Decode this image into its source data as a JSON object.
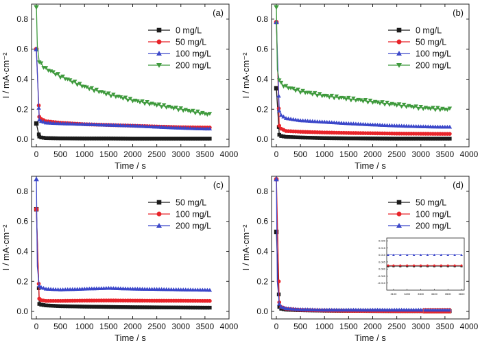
{
  "figure": {
    "title": ""
  },
  "colors": {
    "black": "#1a1a1a",
    "red": "#e8242a",
    "blue": "#3b47c9",
    "green": "#3f9a3d",
    "inset_box": "#e05050"
  },
  "chart_data": [
    {
      "panel_label": "(a)",
      "type": "line",
      "xlabel": "Time / s",
      "ylabel": "I / mA·cm⁻²",
      "xlim": [
        -100,
        4000
      ],
      "ylim": [
        -0.05,
        0.9
      ],
      "xticks": [
        0,
        500,
        1000,
        1500,
        2000,
        2500,
        3000,
        3500,
        4000
      ],
      "yticks": [
        0.0,
        0.2,
        0.4,
        0.6,
        0.8
      ],
      "legend": "top-right",
      "series": [
        {
          "name": "0 mg/L",
          "color": "#1a1a1a",
          "marker": "square",
          "x": [
            0,
            60,
            100,
            200,
            500,
            1000,
            1500,
            2000,
            2500,
            3000,
            3500,
            3600
          ],
          "y": [
            0.105,
            0.018,
            0.012,
            0.008,
            0.006,
            0.005,
            0.005,
            0.004,
            0.004,
            0.004,
            0.004,
            0.004
          ]
        },
        {
          "name": "50 mg/L",
          "color": "#e8242a",
          "marker": "circle",
          "x": [
            0,
            60,
            100,
            200,
            500,
            1000,
            1500,
            2000,
            2500,
            3000,
            3500,
            3600
          ],
          "y": [
            0.6,
            0.15,
            0.135,
            0.12,
            0.11,
            0.1,
            0.095,
            0.09,
            0.085,
            0.08,
            0.078,
            0.078
          ]
        },
        {
          "name": "100 mg/L",
          "color": "#3b47c9",
          "marker": "triangle",
          "x": [
            0,
            60,
            100,
            200,
            500,
            1000,
            1500,
            2000,
            2500,
            3000,
            3500,
            3600
          ],
          "y": [
            0.6,
            0.13,
            0.12,
            0.11,
            0.105,
            0.1,
            0.095,
            0.09,
            0.082,
            0.075,
            0.07,
            0.07
          ]
        },
        {
          "name": "200 mg/L",
          "color": "#3f9a3d",
          "marker": "triangle-down",
          "x": [
            0,
            20,
            60,
            100,
            200,
            500,
            1000,
            1500,
            2000,
            2500,
            3000,
            3500,
            3600
          ],
          "y": [
            0.9,
            0.62,
            0.52,
            0.5,
            0.47,
            0.42,
            0.35,
            0.3,
            0.26,
            0.23,
            0.2,
            0.17,
            0.165
          ]
        }
      ]
    },
    {
      "panel_label": "(b)",
      "type": "line",
      "xlabel": "Time / s",
      "ylabel": "I / mA·cm⁻²",
      "xlim": [
        -100,
        4000
      ],
      "ylim": [
        -0.05,
        0.9
      ],
      "xticks": [
        0,
        500,
        1000,
        1500,
        2000,
        2500,
        3000,
        3500,
        4000
      ],
      "yticks": [
        0.0,
        0.2,
        0.4,
        0.6,
        0.8
      ],
      "legend": "top-right",
      "series": [
        {
          "name": "0 mg/L",
          "color": "#1a1a1a",
          "marker": "square",
          "x": [
            0,
            60,
            100,
            200,
            500,
            1000,
            1500,
            2000,
            2500,
            3000,
            3500,
            3600
          ],
          "y": [
            0.34,
            0.03,
            0.022,
            0.016,
            0.012,
            0.008,
            0.006,
            0.005,
            0.004,
            0.004,
            0.004,
            0.004
          ]
        },
        {
          "name": "50 mg/L",
          "color": "#e8242a",
          "marker": "circle",
          "x": [
            0,
            60,
            100,
            200,
            500,
            1000,
            1500,
            2000,
            2500,
            3000,
            3500,
            3600
          ],
          "y": [
            0.78,
            0.09,
            0.07,
            0.055,
            0.05,
            0.045,
            0.042,
            0.04,
            0.038,
            0.037,
            0.036,
            0.036
          ]
        },
        {
          "name": "100 mg/L",
          "color": "#3b47c9",
          "marker": "triangle",
          "x": [
            0,
            60,
            100,
            200,
            500,
            1000,
            1500,
            2000,
            2500,
            3000,
            3500,
            3600
          ],
          "y": [
            0.78,
            0.19,
            0.16,
            0.14,
            0.125,
            0.115,
            0.105,
            0.097,
            0.09,
            0.085,
            0.082,
            0.082
          ]
        },
        {
          "name": "200 mg/L",
          "color": "#3f9a3d",
          "marker": "triangle-down",
          "x": [
            0,
            20,
            60,
            100,
            200,
            500,
            1000,
            1500,
            2000,
            2500,
            3000,
            3500,
            3600
          ],
          "y": [
            0.9,
            0.46,
            0.4,
            0.37,
            0.35,
            0.32,
            0.29,
            0.27,
            0.25,
            0.23,
            0.21,
            0.2,
            0.2
          ]
        }
      ]
    },
    {
      "panel_label": "(c)",
      "type": "line",
      "xlabel": "Time / s",
      "ylabel": "I / mA·cm⁻²",
      "xlim": [
        -100,
        4000
      ],
      "ylim": [
        -0.05,
        0.9
      ],
      "xticks": [
        0,
        500,
        1000,
        1500,
        2000,
        2500,
        3000,
        3500,
        4000
      ],
      "yticks": [
        0.0,
        0.2,
        0.4,
        0.6,
        0.8
      ],
      "legend": "top-right",
      "series": [
        {
          "name": "50 mg/L",
          "color": "#1a1a1a",
          "marker": "square",
          "x": [
            0,
            60,
            100,
            200,
            500,
            1000,
            1500,
            2000,
            2500,
            3000,
            3500,
            3600
          ],
          "y": [
            0.68,
            0.05,
            0.045,
            0.04,
            0.035,
            0.032,
            0.03,
            0.028,
            0.027,
            0.026,
            0.025,
            0.025
          ]
        },
        {
          "name": "100 mg/L",
          "color": "#e8242a",
          "marker": "circle",
          "x": [
            0,
            60,
            100,
            200,
            500,
            1000,
            1500,
            2000,
            2500,
            3000,
            3500,
            3600
          ],
          "y": [
            0.68,
            0.085,
            0.075,
            0.07,
            0.07,
            0.072,
            0.073,
            0.072,
            0.071,
            0.071,
            0.07,
            0.07
          ]
        },
        {
          "name": "200 mg/L",
          "color": "#3b47c9",
          "marker": "triangle",
          "x": [
            0,
            20,
            60,
            100,
            200,
            500,
            1000,
            1500,
            2000,
            2500,
            3000,
            3500,
            3600
          ],
          "y": [
            0.9,
            0.3,
            0.17,
            0.16,
            0.15,
            0.145,
            0.15,
            0.155,
            0.15,
            0.148,
            0.145,
            0.143,
            0.142
          ]
        }
      ]
    },
    {
      "panel_label": "(d)",
      "type": "line",
      "xlabel": "Time / s",
      "ylabel": "I / mA·cm⁻²",
      "xlim": [
        -100,
        4000
      ],
      "ylim": [
        -0.05,
        0.9
      ],
      "xticks": [
        0,
        500,
        1000,
        1500,
        2000,
        2500,
        3000,
        3500,
        4000
      ],
      "yticks": [
        0.0,
        0.2,
        0.4,
        0.6,
        0.8
      ],
      "legend": "top-right",
      "series": [
        {
          "name": "50 mg/L",
          "color": "#1a1a1a",
          "marker": "square",
          "x": [
            0,
            60,
            100,
            200,
            500,
            1000,
            1500,
            2000,
            2500,
            3000,
            3500,
            3600
          ],
          "y": [
            0.53,
            0.03,
            0.018,
            0.012,
            0.008,
            0.005,
            0.004,
            0.003,
            0.002,
            0.002,
            0.002,
            0.002
          ]
        },
        {
          "name": "100 mg/L",
          "color": "#e8242a",
          "marker": "circle",
          "x": [
            0,
            60,
            100,
            200,
            500,
            1000,
            1500,
            2000,
            2500,
            3000,
            3500,
            3600
          ],
          "y": [
            0.9,
            0.06,
            0.03,
            0.018,
            0.01,
            0.006,
            0.004,
            0.003,
            0.002,
            0.002,
            0.002,
            0.002
          ]
        },
        {
          "name": "200 mg/L",
          "color": "#3b47c9",
          "marker": "triangle",
          "x": [
            0,
            20,
            60,
            100,
            200,
            500,
            1000,
            1500,
            2000,
            2500,
            3000,
            3500,
            3600
          ],
          "y": [
            0.9,
            0.2,
            0.05,
            0.03,
            0.02,
            0.013,
            0.01,
            0.01,
            0.01,
            0.01,
            0.01,
            0.01,
            0.01
          ]
        }
      ],
      "inset": {
        "xlim": [
          3050,
          3620
        ],
        "ylim": [
          -0.015,
          0.022
        ],
        "xticks": [
          3100,
          3200,
          3300,
          3400,
          3500,
          3600
        ],
        "yticks": [
          -0.01,
          -0.005,
          0.0,
          0.005,
          0.01,
          0.015,
          0.02
        ],
        "series": [
          {
            "name": "50 mg/L",
            "color": "#1a1a1a",
            "marker": "square",
            "x": [
              3060,
              3100,
              3150,
              3200,
              3250,
              3300,
              3350,
              3400,
              3450,
              3500,
              3550,
              3600
            ],
            "y": [
              0.002,
              0.002,
              0.002,
              0.002,
              0.002,
              0.002,
              0.002,
              0.002,
              0.002,
              0.002,
              0.002,
              0.002
            ]
          },
          {
            "name": "100 mg/L",
            "color": "#e8242a",
            "marker": "circle",
            "x": [
              3060,
              3100,
              3150,
              3200,
              3250,
              3300,
              3350,
              3400,
              3450,
              3500,
              3550,
              3600
            ],
            "y": [
              0.0025,
              0.0025,
              0.0025,
              0.0025,
              0.0025,
              0.0025,
              0.0025,
              0.0025,
              0.0025,
              0.0025,
              0.0025,
              0.0025
            ]
          },
          {
            "name": "200 mg/L",
            "color": "#3b47c9",
            "marker": "triangle",
            "x": [
              3060,
              3100,
              3150,
              3200,
              3250,
              3300,
              3350,
              3400,
              3450,
              3500,
              3550,
              3600
            ],
            "y": [
              0.01,
              0.01,
              0.01,
              0.01,
              0.01,
              0.01,
              0.01,
              0.01,
              0.01,
              0.01,
              0.01,
              0.01
            ]
          }
        ]
      },
      "highlight_box": {
        "xlim": [
          3050,
          3620
        ],
        "ylim": [
          -0.012,
          0.02
        ]
      }
    }
  ]
}
